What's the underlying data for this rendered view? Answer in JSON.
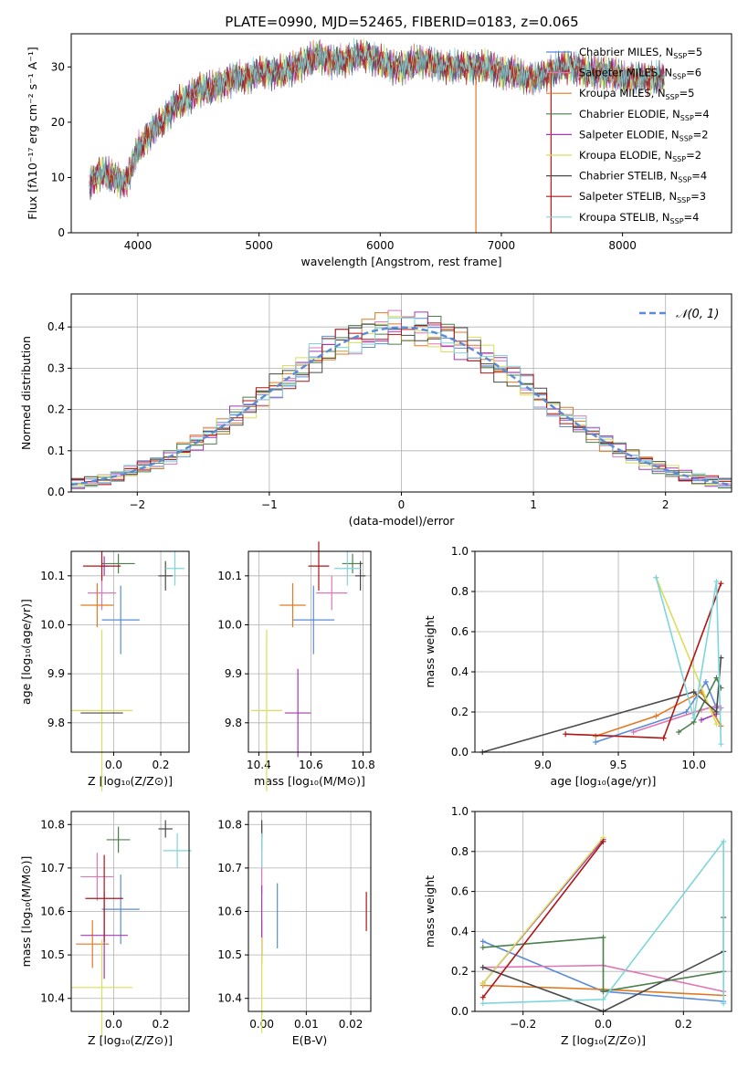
{
  "title": "PLATE=0990, MJD=52465, FIBERID=0183, z=0.065",
  "colors": {
    "chabrier_miles": "#5b8bd6",
    "salpeter_miles": "#e075b8",
    "kroupa_miles": "#e07a22",
    "chabrier_elodie": "#4c7f4c",
    "salpeter_elodie": "#a33ab3",
    "kroupa_elodie": "#d8df5a",
    "chabrier_stelib": "#4a4a4a",
    "salpeter_stelib": "#b01515",
    "kroupa_stelib": "#7ed6da"
  },
  "chart_data": [
    {
      "type": "line",
      "xlabel": "wavelength [Angstrom, rest frame]",
      "ylabel": "Flux [fλ10⁻¹⁷ erg cm⁻² s⁻¹ A⁻¹]",
      "xlim": [
        3450,
        8900
      ],
      "ylim": [
        0,
        36
      ],
      "xticks": [
        "4000",
        "5000",
        "6000",
        "7000",
        "8000"
      ],
      "yticks": [
        "0",
        "10",
        "20",
        "30"
      ],
      "legend": "top-right",
      "x": [
        3600,
        3700,
        3800,
        3900,
        4000,
        4100,
        4200,
        4300,
        4400,
        4500,
        4600,
        4700,
        4800,
        4900,
        5000,
        5100,
        5200,
        5300,
        5400,
        5500,
        5600,
        5700,
        5800,
        5900,
        6000,
        6100,
        6200,
        6300,
        6400,
        6500,
        6600,
        6700,
        6800,
        6900,
        7000,
        7100,
        7200,
        7300,
        7400,
        7500,
        7600,
        7700,
        7800,
        7900,
        8000,
        8100,
        8200,
        8300
      ],
      "series": [
        {
          "name": "Chabrier MILES, N_SSP=5",
          "label": "Chabrier MILES, N",
          "sub": "SSP",
          "suffix": "=5",
          "key": "chabrier_miles"
        },
        {
          "name": "Salpeter MILES, N_SSP=6",
          "label": "Salpeter MILES, N",
          "sub": "SSP",
          "suffix": "=6",
          "key": "salpeter_miles"
        },
        {
          "name": "Kroupa MILES, N_SSP=5",
          "label": "Kroupa MILES, N",
          "sub": "SSP",
          "suffix": "=5",
          "key": "kroupa_miles"
        },
        {
          "name": "Chabrier ELODIE, N_SSP=4",
          "label": "Chabrier ELODIE, N",
          "sub": "SSP",
          "suffix": "=4",
          "key": "chabrier_elodie"
        },
        {
          "name": "Salpeter ELODIE, N_SSP=2",
          "label": "Salpeter ELODIE, N",
          "sub": "SSP",
          "suffix": "=2",
          "key": "salpeter_elodie"
        },
        {
          "name": "Kroupa ELODIE, N_SSP=2",
          "label": "Kroupa ELODIE, N",
          "sub": "SSP",
          "suffix": "=2",
          "key": "kroupa_elodie"
        },
        {
          "name": "Chabrier STELIB, N_SSP=4",
          "label": "Chabrier STELIB, N",
          "sub": "SSP",
          "suffix": "=4",
          "key": "chabrier_stelib"
        },
        {
          "name": "Salpeter STELIB, N_SSP=3",
          "label": "Salpeter STELIB, N",
          "sub": "SSP",
          "suffix": "=3",
          "key": "salpeter_stelib"
        },
        {
          "name": "Kroupa STELIB, N_SSP=4",
          "label": "Kroupa STELIB, N",
          "sub": "SSP",
          "suffix": "=4",
          "key": "kroupa_stelib"
        }
      ],
      "values": [
        9,
        11,
        10,
        9,
        15,
        18,
        20,
        23,
        24,
        26,
        26,
        27,
        28,
        28,
        29,
        29,
        29,
        30,
        31,
        32,
        31,
        31,
        32,
        32,
        31,
        30,
        30,
        31,
        31,
        30,
        30,
        30,
        30,
        30,
        29,
        29,
        28,
        28,
        29,
        30,
        30,
        29,
        29,
        29,
        28,
        28,
        28,
        28
      ]
    },
    {
      "type": "line",
      "xlabel": "(data-model)/error",
      "ylabel": "Normed distribution",
      "xlim": [
        -2.5,
        2.5
      ],
      "ylim": [
        0,
        0.48
      ],
      "xticks": [
        "−2",
        "−1",
        "0",
        "1",
        "2"
      ],
      "yticks": [
        "0.0",
        "0.1",
        "0.2",
        "0.3",
        "0.4"
      ],
      "grid": true,
      "legend": "top-right",
      "legend_label": "𝒩(0, 1)",
      "series_name": "𝒩(0, 1)",
      "x": [
        -2.5,
        -2.0,
        -1.5,
        -1.0,
        -0.5,
        0.0,
        0.5,
        1.0,
        1.5,
        2.0,
        2.5
      ],
      "values": [
        0.018,
        0.054,
        0.13,
        0.242,
        0.352,
        0.399,
        0.352,
        0.242,
        0.13,
        0.054,
        0.018
      ]
    },
    {
      "type": "scatter",
      "xlabel": "Z [log₁₀(Z/Z⊙)]",
      "ylabel": "age  [log₁₀(age/yr)]",
      "xlim": [
        -0.18,
        0.32
      ],
      "ylim": [
        9.74,
        10.15
      ],
      "xticks": [
        "0.0",
        "0.2"
      ],
      "yticks": [
        "9.8",
        "9.9",
        "10.0",
        "10.1"
      ],
      "grid": true,
      "points": [
        {
          "key": "chabrier_miles",
          "x": 0.03,
          "xerr": 0.08,
          "y": 10.01,
          "yerr": 0.07
        },
        {
          "key": "salpeter_miles",
          "x": -0.05,
          "xerr": 0.06,
          "y": 10.065,
          "yerr": 0.035
        },
        {
          "key": "kroupa_miles",
          "x": -0.07,
          "xerr": 0.07,
          "y": 10.04,
          "yerr": 0.045
        },
        {
          "key": "chabrier_elodie",
          "x": 0.02,
          "xerr": 0.07,
          "y": 10.125,
          "yerr": 0.02
        },
        {
          "key": "salpeter_elodie",
          "x": -0.04,
          "xerr": 0.02,
          "y": 10.12,
          "yerr": 0.02
        },
        {
          "key": "kroupa_elodie",
          "x": -0.05,
          "xerr": 0.13,
          "y": 9.825,
          "yerr": 0.165
        },
        {
          "key": "chabrier_stelib",
          "x": 0.22,
          "xerr": 0.03,
          "y": 10.1,
          "yerr": 0.03
        },
        {
          "key": "salpeter_stelib",
          "x": -0.05,
          "xerr": 0.08,
          "y": 10.12,
          "yerr": 0.03
        },
        {
          "key": "kroupa_stelib",
          "x": 0.26,
          "xerr": 0.04,
          "y": 10.115,
          "yerr": 0.035
        },
        {
          "key": "chabrier_stelib",
          "x": -0.05,
          "xerr": 0.09,
          "y": 9.82,
          "yerr": 0.0
        }
      ]
    },
    {
      "type": "scatter",
      "xlabel": "mass [log₁₀(M/M⊙)]",
      "ylabel": "",
      "xlim": [
        10.36,
        10.83
      ],
      "ylim": [
        9.74,
        10.15
      ],
      "xticks": [
        "10.4",
        "10.6",
        "10.8"
      ],
      "yticks": [
        "9.8",
        "9.9",
        "10.0",
        "10.1"
      ],
      "grid": true,
      "points": [
        {
          "key": "chabrier_miles",
          "x": 10.61,
          "xerr": 0.08,
          "y": 10.01,
          "yerr": 0.07
        },
        {
          "key": "salpeter_miles",
          "x": 10.68,
          "xerr": 0.06,
          "y": 10.065,
          "yerr": 0.035
        },
        {
          "key": "kroupa_miles",
          "x": 10.53,
          "xerr": 0.05,
          "y": 10.04,
          "yerr": 0.045
        },
        {
          "key": "chabrier_elodie",
          "x": 10.76,
          "xerr": 0.04,
          "y": 10.125,
          "yerr": 0.02
        },
        {
          "key": "salpeter_elodie",
          "x": 10.55,
          "xerr": 0.05,
          "y": 9.82,
          "yerr": 0.09
        },
        {
          "key": "kroupa_elodie",
          "x": 10.43,
          "xerr": 0.06,
          "y": 9.825,
          "yerr": 0.165
        },
        {
          "key": "chabrier_stelib",
          "x": 10.79,
          "xerr": 0.02,
          "y": 10.1,
          "yerr": 0.03
        },
        {
          "key": "salpeter_stelib",
          "x": 10.63,
          "xerr": 0.04,
          "y": 10.12,
          "yerr": 0.05
        },
        {
          "key": "kroupa_stelib",
          "x": 10.74,
          "xerr": 0.05,
          "y": 10.115,
          "yerr": 0.035
        }
      ]
    },
    {
      "type": "line",
      "xlabel": "age  [log₁₀(age/yr)]",
      "ylabel": "mass weight",
      "xlim": [
        8.55,
        10.25
      ],
      "ylim": [
        0,
        1.0
      ],
      "xticks": [
        "9.0",
        "9.5",
        "10.0"
      ],
      "yticks": [
        "0.0",
        "0.2",
        "0.4",
        "0.6",
        "0.8",
        "1.0"
      ],
      "grid": true,
      "series": [
        {
          "key": "chabrier_miles",
          "x": [
            9.35,
            9.95,
            10.08,
            10.15
          ],
          "y": [
            0.05,
            0.2,
            0.35,
            0.22
          ]
        },
        {
          "key": "salpeter_miles",
          "x": [
            9.6,
            10.05,
            10.15,
            10.18
          ],
          "y": [
            0.1,
            0.21,
            0.23,
            0.22
          ]
        },
        {
          "key": "kroupa_miles",
          "x": [
            9.35,
            9.75,
            10.05,
            10.18
          ],
          "y": [
            0.08,
            0.18,
            0.3,
            0.13
          ]
        },
        {
          "key": "chabrier_elodie",
          "x": [
            9.9,
            10.0,
            10.15,
            10.18
          ],
          "y": [
            0.1,
            0.15,
            0.37,
            0.32
          ]
        },
        {
          "key": "salpeter_elodie",
          "x": [
            10.05,
            10.15
          ],
          "y": [
            0.16,
            0.19
          ]
        },
        {
          "key": "kroupa_elodie",
          "x": [
            9.75,
            10.15
          ],
          "y": [
            0.87,
            0.14
          ]
        },
        {
          "key": "chabrier_stelib",
          "x": [
            8.6,
            10.0,
            10.15,
            10.18
          ],
          "y": [
            0.0,
            0.3,
            0.2,
            0.47
          ]
        },
        {
          "key": "salpeter_stelib",
          "x": [
            9.15,
            9.8,
            10.18
          ],
          "y": [
            0.09,
            0.07,
            0.84
          ]
        },
        {
          "key": "kroupa_stelib",
          "x": [
            9.75,
            10.0,
            10.15,
            10.18
          ],
          "y": [
            0.87,
            0.17,
            0.85,
            0.04
          ]
        }
      ]
    },
    {
      "type": "scatter",
      "xlabel": "Z [log₁₀(Z/Z⊙)]",
      "ylabel": "mass [log₁₀(M/M⊙)]",
      "xlim": [
        -0.18,
        0.32
      ],
      "ylim": [
        10.37,
        10.83
      ],
      "xticks": [
        "0.0",
        "0.2"
      ],
      "yticks": [
        "10.4",
        "10.5",
        "10.6",
        "10.7",
        "10.8"
      ],
      "grid": true,
      "points": [
        {
          "key": "chabrier_miles",
          "x": 0.03,
          "xerr": 0.08,
          "y": 10.605,
          "yerr": 0.08
        },
        {
          "key": "salpeter_miles",
          "x": -0.07,
          "xerr": 0.07,
          "y": 10.68,
          "yerr": 0.055
        },
        {
          "key": "kroupa_miles",
          "x": -0.09,
          "xerr": 0.07,
          "y": 10.525,
          "yerr": 0.055
        },
        {
          "key": "chabrier_elodie",
          "x": 0.02,
          "xerr": 0.05,
          "y": 10.765,
          "yerr": 0.03
        },
        {
          "key": "salpeter_elodie",
          "x": -0.04,
          "xerr": 0.1,
          "y": 10.545,
          "yerr": 0.1
        },
        {
          "key": "kroupa_elodie",
          "x": -0.05,
          "xerr": 0.13,
          "y": 10.425,
          "yerr": 0.11
        },
        {
          "key": "chabrier_stelib",
          "x": 0.22,
          "xerr": 0.03,
          "y": 10.79,
          "yerr": 0.02
        },
        {
          "key": "salpeter_stelib",
          "x": -0.04,
          "xerr": 0.08,
          "y": 10.63,
          "yerr": 0.1
        },
        {
          "key": "kroupa_stelib",
          "x": 0.27,
          "xerr": 0.06,
          "y": 10.74,
          "yerr": 0.04
        }
      ]
    },
    {
      "type": "scatter",
      "xlabel": "E(B-V)",
      "ylabel": "",
      "xlim": [
        -0.003,
        0.0245
      ],
      "ylim": [
        10.37,
        10.83
      ],
      "xticks": [
        "0.00",
        "0.01",
        "0.02"
      ],
      "yticks": [
        "10.4",
        "10.5",
        "10.6",
        "10.7",
        "10.8"
      ],
      "grid": true,
      "points": [
        {
          "key": "chabrier_miles",
          "x": 0.0035,
          "xerr": 0,
          "y": 10.59,
          "yerr": 0.075
        },
        {
          "key": "salpeter_miles",
          "x": 0.0,
          "xerr": 0,
          "y": 10.69,
          "yerr": 0.05
        },
        {
          "key": "kroupa_miles",
          "x": 0.0,
          "xerr": 0,
          "y": 10.53,
          "yerr": 0.05
        },
        {
          "key": "chabrier_elodie",
          "x": 0.0,
          "xerr": 0,
          "y": 10.77,
          "yerr": 0.03
        },
        {
          "key": "salpeter_elodie",
          "x": 0.0,
          "xerr": 0,
          "y": 10.58,
          "yerr": 0.08
        },
        {
          "key": "kroupa_elodie",
          "x": 0.0,
          "xerr": 0,
          "y": 10.43,
          "yerr": 0.11
        },
        {
          "key": "chabrier_stelib",
          "x": 0.0,
          "xerr": 0,
          "y": 10.79,
          "yerr": 0.02
        },
        {
          "key": "salpeter_stelib",
          "x": 0.0235,
          "xerr": 0,
          "y": 10.6,
          "yerr": 0.045
        },
        {
          "key": "kroupa_stelib",
          "x": 0.0,
          "xerr": 0,
          "y": 10.74,
          "yerr": 0.04
        }
      ]
    },
    {
      "type": "line",
      "xlabel": "Z [log₁₀(Z/Z⊙)]",
      "ylabel": "mass weight",
      "xlim": [
        -0.32,
        0.32
      ],
      "ylim": [
        0,
        1.0
      ],
      "xticks": [
        "−0.2",
        "0.0",
        "0.2"
      ],
      "yticks": [
        "0.0",
        "0.2",
        "0.4",
        "0.6",
        "0.8",
        "1.0"
      ],
      "grid": true,
      "series": [
        {
          "key": "chabrier_miles",
          "x": [
            -0.3,
            0.0,
            0.3
          ],
          "y": [
            0.35,
            0.1,
            0.05
          ]
        },
        {
          "key": "salpeter_miles",
          "x": [
            -0.3,
            0.0,
            0.3
          ],
          "y": [
            0.22,
            0.23,
            0.1
          ]
        },
        {
          "key": "kroupa_miles",
          "x": [
            -0.3,
            0.0,
            0.3
          ],
          "y": [
            0.13,
            0.11,
            0.08
          ]
        },
        {
          "key": "chabrier_elodie",
          "x": [
            -0.3,
            0.0,
            0.0,
            0.3
          ],
          "y": [
            0.32,
            0.37,
            0.1,
            0.2
          ]
        },
        {
          "key": "salpeter_elodie",
          "x": [
            -0.3,
            0.0
          ],
          "y": [
            0.14,
            0.86
          ]
        },
        {
          "key": "kroupa_elodie",
          "x": [
            -0.3,
            0.0
          ],
          "y": [
            0.14,
            0.87
          ]
        },
        {
          "key": "chabrier_stelib",
          "x": [
            -0.3,
            0.0,
            0.3,
            0.3
          ],
          "y": [
            0.22,
            0.0,
            0.3,
            0.47
          ]
        },
        {
          "key": "salpeter_stelib",
          "x": [
            -0.3,
            0.0
          ],
          "y": [
            0.07,
            0.85
          ]
        },
        {
          "key": "kroupa_stelib",
          "x": [
            -0.3,
            0.0,
            0.3,
            0.3
          ],
          "y": [
            0.04,
            0.06,
            0.85,
            0.04
          ]
        }
      ]
    }
  ]
}
